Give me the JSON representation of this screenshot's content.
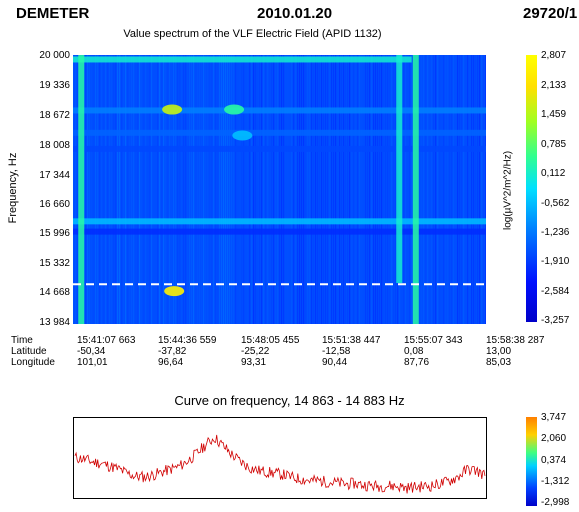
{
  "header": {
    "satellite": "DEMETER",
    "date": "2010.01.20",
    "orbit": "29720/1"
  },
  "chart_data": [
    {
      "type": "heatmap",
      "title": "Value spectrum of the VLF Electric Field (APID 1132)",
      "ylabel": "Frequency, Hz",
      "y_ticks": [
        "20 000",
        "19 336",
        "18 672",
        "18 008",
        "17 344",
        "16 660",
        "15 996",
        "15 332",
        "14 668",
        "13 984"
      ],
      "ylim": [
        13984,
        20000
      ],
      "colorbar_label": "log(µV^2/m^2/Hz)",
      "colorbar_ticks": [
        "2,807",
        "2,133",
        "1,459",
        "0,785",
        "0,112",
        "-0,562",
        "-1,236",
        "-1,910",
        "-2,584",
        "-3,257"
      ],
      "colorbar_range": [
        -3.257,
        2.807
      ],
      "marker_frequency_hz": 14873,
      "x_axis": {
        "row_labels": [
          "Time",
          "Latitude",
          "Longitude"
        ],
        "columns": [
          {
            "time": "15:41:07 663",
            "latitude": "-50,34",
            "longitude": "101,01"
          },
          {
            "time": "15:44:36 559",
            "latitude": "-37,82",
            "longitude": "96,64"
          },
          {
            "time": "15:48:05 455",
            "latitude": "-25,22",
            "longitude": "93,31"
          },
          {
            "time": "15:51:38 447",
            "latitude": "-12,58",
            "longitude": "90,44"
          },
          {
            "time": "15:55:07 343",
            "latitude": "0,08",
            "longitude": "87,76"
          },
          {
            "time": "15:58:38 287",
            "latitude": "13,00",
            "longitude": "85,03"
          }
        ]
      },
      "features": [
        {
          "kind": "horizontal-band",
          "freq_hz": 19900,
          "t_start": 0.0,
          "t_end": 0.82,
          "level": 0.55
        },
        {
          "kind": "horizontal-band",
          "freq_hz": 18760,
          "t_start": 0.0,
          "t_end": 1.0,
          "level": 0.35
        },
        {
          "kind": "horizontal-band",
          "freq_hz": 18260,
          "t_start": 0.0,
          "t_end": 1.0,
          "level": 0.3
        },
        {
          "kind": "horizontal-band",
          "freq_hz": 17900,
          "t_start": 0.0,
          "t_end": 1.0,
          "level": 0.25
        },
        {
          "kind": "horizontal-band",
          "freq_hz": 16280,
          "t_start": 0.0,
          "t_end": 1.0,
          "level": 0.45
        },
        {
          "kind": "horizontal-band",
          "freq_hz": 16050,
          "t_start": 0.0,
          "t_end": 1.0,
          "level": 0.2
        },
        {
          "kind": "vertical-band",
          "t": 0.02,
          "freq_start": 13984,
          "freq_end": 20000,
          "level": 0.6
        },
        {
          "kind": "vertical-band",
          "t": 0.79,
          "freq_start": 14900,
          "freq_end": 20000,
          "level": 0.55
        },
        {
          "kind": "vertical-band",
          "t": 0.83,
          "freq_start": 13984,
          "freq_end": 20000,
          "level": 0.6
        },
        {
          "kind": "blob",
          "t": 0.24,
          "freq_hz": 18780,
          "level": 0.8
        },
        {
          "kind": "blob",
          "t": 0.39,
          "freq_hz": 18780,
          "level": 0.6
        },
        {
          "kind": "blob",
          "t": 0.41,
          "freq_hz": 18200,
          "level": 0.45
        },
        {
          "kind": "blob",
          "t": 0.245,
          "freq_hz": 14720,
          "level": 0.95
        }
      ]
    },
    {
      "type": "line",
      "title": "Curve on frequency, 14 863 - 14 883 Hz",
      "colorbar_ticks": [
        "3,747",
        "2,060",
        "0,374",
        "-1,312",
        "-2,998"
      ],
      "series": [
        {
          "color": "#d00000",
          "values": [
            0.52,
            0.5,
            0.46,
            0.44,
            0.4,
            0.36,
            0.3,
            0.26,
            0.25,
            0.28,
            0.32,
            0.36,
            0.4,
            0.48,
            0.58,
            0.7,
            0.8,
            0.68,
            0.56,
            0.46,
            0.38,
            0.34,
            0.32,
            0.3,
            0.28,
            0.24,
            0.22,
            0.2,
            0.2,
            0.18,
            0.17,
            0.15,
            0.16,
            0.14,
            0.13,
            0.12,
            0.13,
            0.12,
            0.1,
            0.11,
            0.12,
            0.13,
            0.16,
            0.2,
            0.26,
            0.36,
            0.34,
            0.27
          ]
        }
      ]
    }
  ]
}
